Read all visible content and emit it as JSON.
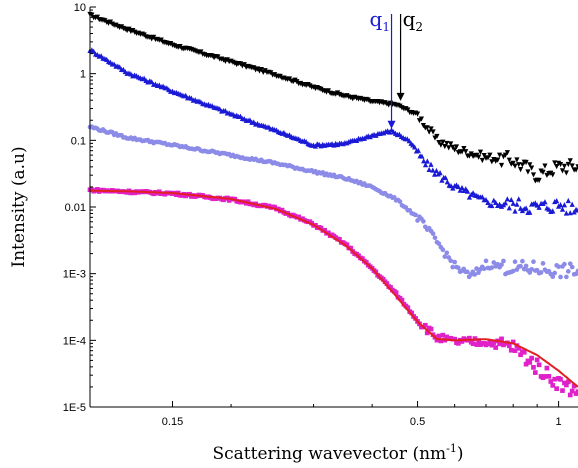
{
  "chart_data": {
    "type": "scatter",
    "title": "",
    "xlabel": "Scattering wavevector (nm",
    "xlabel_sup": "-1",
    "xlabel_end": ")",
    "ylabel": "Intensity (a.u)",
    "xscale": "log",
    "yscale": "log",
    "xlim": [
      0.1,
      1.1
    ],
    "ylim": [
      1e-05,
      10
    ],
    "x_ticks": [
      0.15,
      0.5,
      1
    ],
    "x_tick_labels": [
      "0.15",
      "0.5",
      "1"
    ],
    "y_ticks": [
      10,
      1,
      0.1,
      0.01,
      0.001,
      0.0001,
      1e-05
    ],
    "y_tick_labels": [
      "10",
      "1",
      "0.1",
      "0.01",
      "1E-3",
      "1E-4",
      "1E-5"
    ],
    "grid": false,
    "legend": "none",
    "series": [
      {
        "marker": "triangle-down",
        "color": "#000000",
        "points": [
          [
            0.1,
            7.5
          ],
          [
            0.12,
            4.6
          ],
          [
            0.15,
            2.7
          ],
          [
            0.2,
            1.5
          ],
          [
            0.25,
            0.95
          ],
          [
            0.3,
            0.62
          ],
          [
            0.35,
            0.46
          ],
          [
            0.4,
            0.38
          ],
          [
            0.45,
            0.34
          ],
          [
            0.5,
            0.24
          ],
          [
            0.55,
            0.1
          ],
          [
            0.6,
            0.075
          ],
          [
            0.7,
            0.055
          ],
          [
            0.8,
            0.05
          ],
          [
            0.9,
            0.03
          ],
          [
            1.0,
            0.04
          ],
          [
            1.1,
            0.04
          ]
        ]
      },
      {
        "marker": "triangle-up",
        "color": "#1a1ad6",
        "points": [
          [
            0.1,
            2.3
          ],
          [
            0.12,
            1.05
          ],
          [
            0.15,
            0.55
          ],
          [
            0.2,
            0.25
          ],
          [
            0.25,
            0.14
          ],
          [
            0.3,
            0.085
          ],
          [
            0.35,
            0.09
          ],
          [
            0.4,
            0.12
          ],
          [
            0.44,
            0.14
          ],
          [
            0.48,
            0.1
          ],
          [
            0.52,
            0.045
          ],
          [
            0.6,
            0.02
          ],
          [
            0.7,
            0.012
          ],
          [
            0.8,
            0.011
          ],
          [
            0.9,
            0.01
          ],
          [
            1.0,
            0.011
          ],
          [
            1.1,
            0.009
          ]
        ]
      },
      {
        "marker": "circle",
        "color": "#8c8ce8",
        "points": [
          [
            0.1,
            0.16
          ],
          [
            0.12,
            0.11
          ],
          [
            0.15,
            0.085
          ],
          [
            0.2,
            0.06
          ],
          [
            0.25,
            0.045
          ],
          [
            0.3,
            0.034
          ],
          [
            0.35,
            0.027
          ],
          [
            0.4,
            0.02
          ],
          [
            0.45,
            0.013
          ],
          [
            0.5,
            0.007
          ],
          [
            0.55,
            0.003
          ],
          [
            0.6,
            0.0013
          ],
          [
            0.65,
            0.0009
          ],
          [
            0.7,
            0.0014
          ],
          [
            0.8,
            0.0012
          ],
          [
            0.9,
            0.0012
          ],
          [
            1.0,
            0.0011
          ],
          [
            1.1,
            0.0011
          ]
        ]
      },
      {
        "marker": "square",
        "color": "#e020c8",
        "points": [
          [
            0.1,
            0.018
          ],
          [
            0.12,
            0.017
          ],
          [
            0.15,
            0.016
          ],
          [
            0.2,
            0.013
          ],
          [
            0.25,
            0.0095
          ],
          [
            0.3,
            0.0055
          ],
          [
            0.35,
            0.0028
          ],
          [
            0.4,
            0.0012
          ],
          [
            0.45,
            0.0005
          ],
          [
            0.5,
            0.0002
          ],
          [
            0.55,
            0.00011
          ],
          [
            0.6,
            9.5e-05
          ],
          [
            0.7,
            9.5e-05
          ],
          [
            0.8,
            8e-05
          ],
          [
            0.9,
            4e-05
          ],
          [
            1.0,
            2.3e-05
          ],
          [
            1.1,
            1.7e-05
          ]
        ]
      }
    ],
    "fit": {
      "color": "#e02020",
      "points": [
        [
          0.1,
          0.0175
        ],
        [
          0.12,
          0.0172
        ],
        [
          0.15,
          0.0162
        ],
        [
          0.2,
          0.0132
        ],
        [
          0.25,
          0.0093
        ],
        [
          0.3,
          0.0054
        ],
        [
          0.35,
          0.0027
        ],
        [
          0.4,
          0.0012
        ],
        [
          0.45,
          0.00046
        ],
        [
          0.5,
          0.00019
        ],
        [
          0.55,
          0.000105
        ],
        [
          0.6,
          0.0001
        ],
        [
          0.7,
          0.000104
        ],
        [
          0.8,
          9e-05
        ],
        [
          0.9,
          6e-05
        ],
        [
          1.0,
          3.5e-05
        ],
        [
          1.1,
          2e-05
        ]
      ]
    },
    "annotations": [
      {
        "label": "q",
        "sub": "1",
        "x": 0.44,
        "color": "#1a1ad6"
      },
      {
        "label": "q",
        "sub": "2",
        "x": 0.46,
        "color": "#000000"
      }
    ]
  }
}
